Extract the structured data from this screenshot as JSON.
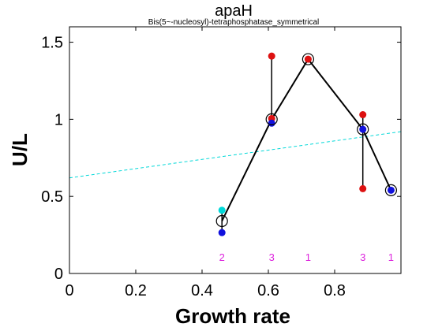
{
  "chart_data": {
    "type": "scatter",
    "title": "apaH",
    "subtitle": "Bis(5~-nucleosyl)-tetraphosphatase_symmetrical",
    "xlabel": "Growth rate",
    "ylabel": "U/L",
    "xlim": [
      0,
      1.0
    ],
    "ylim": [
      0,
      1.6
    ],
    "xticks": [
      0,
      0.2,
      0.4,
      0.6,
      0.8
    ],
    "yticks": [
      0,
      0.5,
      1,
      1.5
    ],
    "grid": false,
    "colors": {
      "red": "#dd1111",
      "blue": "#1111dd",
      "cyan": "#00d8d8",
      "magenta": "#dd22dd",
      "black": "#000000"
    },
    "trend_line": {
      "x": [
        0,
        1.0
      ],
      "y": [
        0.62,
        0.92
      ],
      "color": "#00d8d8",
      "style": "dashed"
    },
    "mean_series": {
      "x": [
        0.46,
        0.61,
        0.72,
        0.885,
        0.97
      ],
      "y": [
        0.34,
        1.0,
        1.39,
        0.935,
        0.54
      ]
    },
    "replicates": [
      {
        "x": 0.46,
        "points": [
          {
            "y": 0.41,
            "color": "cyan"
          },
          {
            "y": 0.265,
            "color": "blue"
          }
        ]
      },
      {
        "x": 0.61,
        "points": [
          {
            "y": 1.41,
            "color": "red"
          },
          {
            "y": 1.005,
            "color": "red"
          },
          {
            "y": 0.975,
            "color": "blue"
          }
        ]
      },
      {
        "x": 0.72,
        "points": [
          {
            "y": 1.39,
            "color": "red"
          }
        ]
      },
      {
        "x": 0.885,
        "points": [
          {
            "y": 1.03,
            "color": "red"
          },
          {
            "y": 0.935,
            "color": "blue"
          },
          {
            "y": 0.55,
            "color": "red"
          }
        ]
      },
      {
        "x": 0.97,
        "points": [
          {
            "y": 0.54,
            "color": "blue"
          }
        ]
      }
    ],
    "count_labels": [
      {
        "x": 0.46,
        "text": "2"
      },
      {
        "x": 0.61,
        "text": "3"
      },
      {
        "x": 0.72,
        "text": "1"
      },
      {
        "x": 0.885,
        "text": "3"
      },
      {
        "x": 0.97,
        "text": "1"
      }
    ]
  }
}
